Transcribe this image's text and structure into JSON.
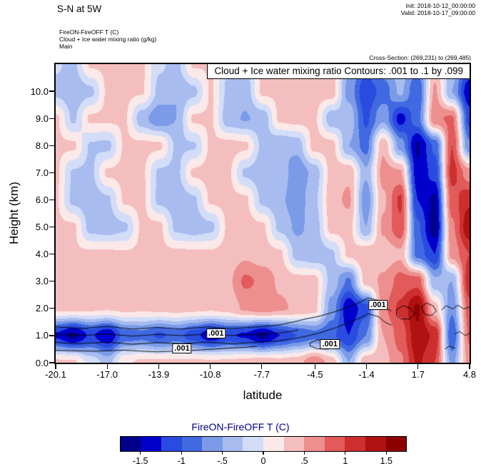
{
  "header": {
    "title": "S-N at 5W",
    "init": "Init: 2018-10-12_00:00:00",
    "valid": "Valid: 2018-10-17_09:00:00",
    "fields": [
      "FireON-FireOFF T  (C)",
      "Cloud + Ice water mixing ratio  (g/kg)",
      "Main"
    ],
    "cross_section": "Cross-Section: (269,231) to (269,485)"
  },
  "chart_data": {
    "type": "heatmap",
    "title": "Cloud + Ice water mixing ratio Contours: .001 to .1 by .099",
    "xlabel": "latitude",
    "ylabel": "Height (km)",
    "units": "C",
    "x_range": [
      -20.1,
      4.8
    ],
    "y_range": [
      0,
      11
    ],
    "x_ticks": [
      {
        "value": -20.1,
        "label": "-20.1"
      },
      {
        "value": -17.0,
        "label": "-17.0"
      },
      {
        "value": -13.9,
        "label": "-13.9"
      },
      {
        "value": -10.8,
        "label": "-10.8"
      },
      {
        "value": -7.7,
        "label": "-7.7"
      },
      {
        "value": -4.5,
        "label": "-4.5"
      },
      {
        "value": -1.4,
        "label": "-1.4"
      },
      {
        "value": 1.7,
        "label": "1.7"
      },
      {
        "value": 4.8,
        "label": "4.8"
      }
    ],
    "y_ticks": [
      {
        "value": 0,
        "label": "0.0"
      },
      {
        "value": 1,
        "label": "1.0"
      },
      {
        "value": 2,
        "label": "2.0"
      },
      {
        "value": 3,
        "label": "3.0"
      },
      {
        "value": 4,
        "label": "4.0"
      },
      {
        "value": 5,
        "label": "5.0"
      },
      {
        "value": 6,
        "label": "6.0"
      },
      {
        "value": 7,
        "label": "7.0"
      },
      {
        "value": 8,
        "label": "8.0"
      },
      {
        "value": 9,
        "label": "9.0"
      },
      {
        "value": 10,
        "label": "10.0"
      }
    ],
    "grid": {
      "x_start": -20.1,
      "x_end": 4.8,
      "y_start": 0,
      "y_end": 11,
      "values": [
        [
          0.3,
          0.3,
          -0.1,
          -0.35,
          0.2,
          0.3,
          0.3,
          0.3,
          0.3,
          0.3,
          0.3,
          0.35,
          0.4,
          0.35,
          0.4,
          0.7,
          0.4,
          -0.5,
          0.45,
          0.4,
          0.7,
          1.3,
          1.0,
          -0.6,
          0.6
        ],
        [
          -1.3,
          -1.6,
          -1.2,
          -1.5,
          -0.9,
          -0.85,
          -1.05,
          -0.9,
          -1.15,
          -1.45,
          -1.2,
          -1.3,
          -1.6,
          -1.25,
          -1.0,
          -0.85,
          -0.95,
          -1.25,
          -0.75,
          0.5,
          0.85,
          1.45,
          1.2,
          -1.0,
          0.8
        ],
        [
          0.3,
          0.32,
          0.3,
          0.28,
          0.32,
          0.3,
          0.32,
          0.35,
          0.32,
          0.3,
          0.35,
          0.55,
          0.65,
          0.55,
          0.45,
          0.35,
          -0.6,
          -1.45,
          -1.1,
          0.7,
          1.05,
          1.55,
          0.35,
          -0.7,
          0.9
        ],
        [
          0.3,
          0.3,
          0.32,
          0.3,
          0.3,
          0.32,
          0.3,
          0.35,
          0.35,
          0.32,
          0.45,
          0.8,
          0.7,
          0.45,
          0.35,
          0.35,
          -0.35,
          -0.8,
          0.35,
          0.55,
          0.85,
          0.9,
          -0.45,
          -0.5,
          1.2
        ],
        [
          0.3,
          0.28,
          0.3,
          0.3,
          0.28,
          0.3,
          0.3,
          0.32,
          0.3,
          0.3,
          0.35,
          0.45,
          0.35,
          0.3,
          -0.35,
          -0.45,
          -0.3,
          0.3,
          0.45,
          0.35,
          0.45,
          -0.85,
          -1.25,
          0.6,
          1.0
        ],
        [
          0.3,
          0.3,
          -0.35,
          -0.4,
          -0.3,
          0.3,
          0.32,
          -0.32,
          -0.4,
          -0.32,
          0.3,
          0.35,
          0.3,
          -0.32,
          -0.55,
          -0.42,
          0.35,
          0.35,
          -0.5,
          0.55,
          0.95,
          -0.95,
          -1.65,
          0.7,
          1.45
        ],
        [
          0.28,
          -0.32,
          -0.42,
          -0.3,
          0.3,
          0.32,
          -0.32,
          -0.42,
          -0.3,
          0.3,
          0.32,
          0.3,
          -0.32,
          -0.45,
          -0.65,
          -0.32,
          0.4,
          0.55,
          -0.7,
          0.45,
          1.05,
          -1.25,
          -1.55,
          0.9,
          1.2
        ],
        [
          0.3,
          -0.28,
          -0.32,
          0.3,
          0.32,
          0.3,
          -0.3,
          -0.32,
          0.3,
          0.35,
          0.3,
          -0.3,
          -0.42,
          -0.32,
          -0.7,
          -0.42,
          0.35,
          0.45,
          -0.45,
          0.6,
          0.55,
          -1.45,
          -1.15,
          1.1,
          0.6
        ],
        [
          0.3,
          0.3,
          -0.28,
          -0.32,
          0.3,
          0.32,
          0.3,
          -0.3,
          -0.28,
          0.3,
          0.35,
          0.3,
          -0.32,
          -0.5,
          -0.42,
          0.35,
          0.35,
          -0.5,
          -0.85,
          0.45,
          -0.6,
          -1.55,
          -0.95,
          1.0,
          -0.7
        ],
        [
          0.3,
          -0.3,
          0.3,
          0.3,
          0.28,
          -0.42,
          -0.7,
          -0.5,
          0.3,
          0.28,
          -0.42,
          -0.52,
          -0.42,
          0.3,
          0.35,
          0.3,
          -0.42,
          -0.32,
          -1.05,
          -0.55,
          -1.35,
          -0.85,
          0.7,
          0.8,
          -1.1
        ],
        [
          -0.32,
          -0.45,
          -0.32,
          0.3,
          0.3,
          0.28,
          -0.32,
          -0.5,
          -0.32,
          0.28,
          -0.32,
          -0.42,
          0.3,
          0.3,
          0.28,
          0.35,
          0.4,
          -0.6,
          -1.2,
          -0.9,
          -0.45,
          -1.0,
          0.55,
          -0.5,
          -1.45
        ],
        [
          -0.22,
          -0.32,
          0.28,
          0.3,
          0.28,
          0.28,
          -0.22,
          -0.32,
          0.28,
          0.28,
          -0.25,
          -0.25,
          0.28,
          0.3,
          0.3,
          0.32,
          0.35,
          -0.45,
          -0.85,
          -0.55,
          -0.35,
          -0.65,
          0.35,
          -0.35,
          -0.95
        ]
      ]
    },
    "contour_labels": [
      {
        "x": -12.5,
        "y": 0.52,
        "text": ".001"
      },
      {
        "x": -10.45,
        "y": 1.08,
        "text": ".001"
      },
      {
        "x": -3.6,
        "y": 0.68,
        "text": ".001"
      },
      {
        "x": -0.7,
        "y": 2.13,
        "text": ".001"
      }
    ],
    "contour_paths": [
      [
        [
          -20.1,
          1.32
        ],
        [
          -18.5,
          1.26
        ],
        [
          -17,
          1.34
        ],
        [
          -15.5,
          1.24
        ],
        [
          -14,
          1.3
        ],
        [
          -12.5,
          1.24
        ],
        [
          -11,
          1.32
        ],
        [
          -9.5,
          1.26
        ],
        [
          -8,
          1.32
        ],
        [
          -6.8,
          1.38
        ],
        [
          -5.8,
          1.5
        ],
        [
          -5,
          1.62
        ],
        [
          -4.2,
          1.72
        ],
        [
          -3.4,
          1.86
        ],
        [
          -2.6,
          2.02
        ],
        [
          -1.9,
          2.2
        ],
        [
          -1.3,
          2.38
        ],
        [
          -0.7,
          2.3
        ],
        [
          -0.3,
          2.05
        ],
        [
          0.1,
          1.9
        ]
      ],
      [
        [
          -20.1,
          0.74
        ],
        [
          -18.5,
          0.7
        ],
        [
          -17,
          0.76
        ],
        [
          -15.5,
          0.68
        ],
        [
          -14,
          0.74
        ],
        [
          -12.5,
          0.7
        ],
        [
          -11,
          0.76
        ],
        [
          -9.5,
          0.7
        ],
        [
          -8,
          0.75
        ],
        [
          -6.8,
          0.8
        ],
        [
          -5.8,
          0.88
        ],
        [
          -5,
          0.98
        ],
        [
          -4.2,
          1.1
        ],
        [
          -3.4,
          1.26
        ],
        [
          -2.6,
          1.44
        ],
        [
          -1.9,
          1.62
        ],
        [
          -1.3,
          1.8
        ],
        [
          -0.7,
          1.7
        ],
        [
          -0.3,
          1.5
        ],
        [
          0.1,
          1.38
        ]
      ],
      [
        [
          -20.1,
          1.05
        ],
        [
          -18.5,
          1.0
        ],
        [
          -17,
          1.06
        ],
        [
          -15.5,
          0.98
        ],
        [
          -14,
          1.04
        ],
        [
          -12.5,
          1.0
        ],
        [
          -11,
          1.05
        ],
        [
          -9.5,
          1.0
        ],
        [
          -8,
          1.05
        ],
        [
          -6.5,
          1.1
        ],
        [
          -5.5,
          1.2
        ]
      ],
      [
        [
          -20.1,
          0.46
        ],
        [
          -18,
          0.42
        ],
        [
          -16,
          0.46
        ],
        [
          -14,
          0.4
        ],
        [
          -12.3,
          0.44
        ],
        [
          -10.5,
          0.5
        ],
        [
          -9,
          0.56
        ],
        [
          -8,
          0.6
        ]
      ],
      [
        [
          -4.8,
          0.72
        ],
        [
          -4.4,
          0.84
        ],
        [
          -3.8,
          0.8
        ],
        [
          -3.3,
          0.64
        ],
        [
          -3.7,
          0.5
        ],
        [
          -4.4,
          0.52
        ],
        [
          -4.8,
          0.62
        ],
        [
          -4.8,
          0.72
        ]
      ],
      [
        [
          0.4,
          1.95
        ],
        [
          0.8,
          2.1
        ],
        [
          1.25,
          2.0
        ],
        [
          1.5,
          1.8
        ],
        [
          1.2,
          1.62
        ],
        [
          0.7,
          1.6
        ],
        [
          0.4,
          1.75
        ],
        [
          0.4,
          1.95
        ]
      ],
      [
        [
          1.9,
          2.05
        ],
        [
          2.2,
          2.2
        ],
        [
          2.6,
          2.1
        ],
        [
          2.8,
          1.9
        ],
        [
          2.5,
          1.74
        ],
        [
          2.1,
          1.78
        ],
        [
          1.9,
          2.05
        ]
      ],
      [
        [
          3.1,
          1.95
        ],
        [
          3.4,
          2.1
        ],
        [
          3.8,
          1.98
        ],
        [
          4.1,
          2.12
        ],
        [
          4.45,
          1.98
        ],
        [
          4.8,
          2.05
        ]
      ],
      [
        [
          3.9,
          1.05
        ],
        [
          4.2,
          1.15
        ],
        [
          4.55,
          1.0
        ],
        [
          4.8,
          1.08
        ]
      ],
      [
        [
          3.3,
          0.5
        ],
        [
          3.6,
          0.62
        ],
        [
          3.95,
          0.52
        ]
      ]
    ],
    "colorbar": {
      "title": "FireON-FireOFF T  (C)",
      "title_color": "#00008B",
      "levels": [
        -1.75,
        -1.5,
        -1.25,
        -1,
        -0.75,
        -0.5,
        -0.25,
        0,
        0.25,
        0.5,
        0.75,
        1,
        1.25,
        1.5,
        1.75
      ],
      "colors": [
        "#00008B",
        "#0000CD",
        "#2A4BDF",
        "#4169E1",
        "#7B9BE8",
        "#A8BCF0",
        "#D3DDF8",
        "#FBE9E9",
        "#F5BEBE",
        "#EE8F8F",
        "#E25A5A",
        "#CD2F2F",
        "#B01212",
        "#8B0000"
      ],
      "tick_values": [
        -1.5,
        -1,
        -0.5,
        0,
        0.5,
        1,
        1.5
      ],
      "tick_labels": [
        "-1.5",
        "-1",
        "-.5",
        "0",
        ".5",
        "1",
        "1.5"
      ]
    }
  }
}
